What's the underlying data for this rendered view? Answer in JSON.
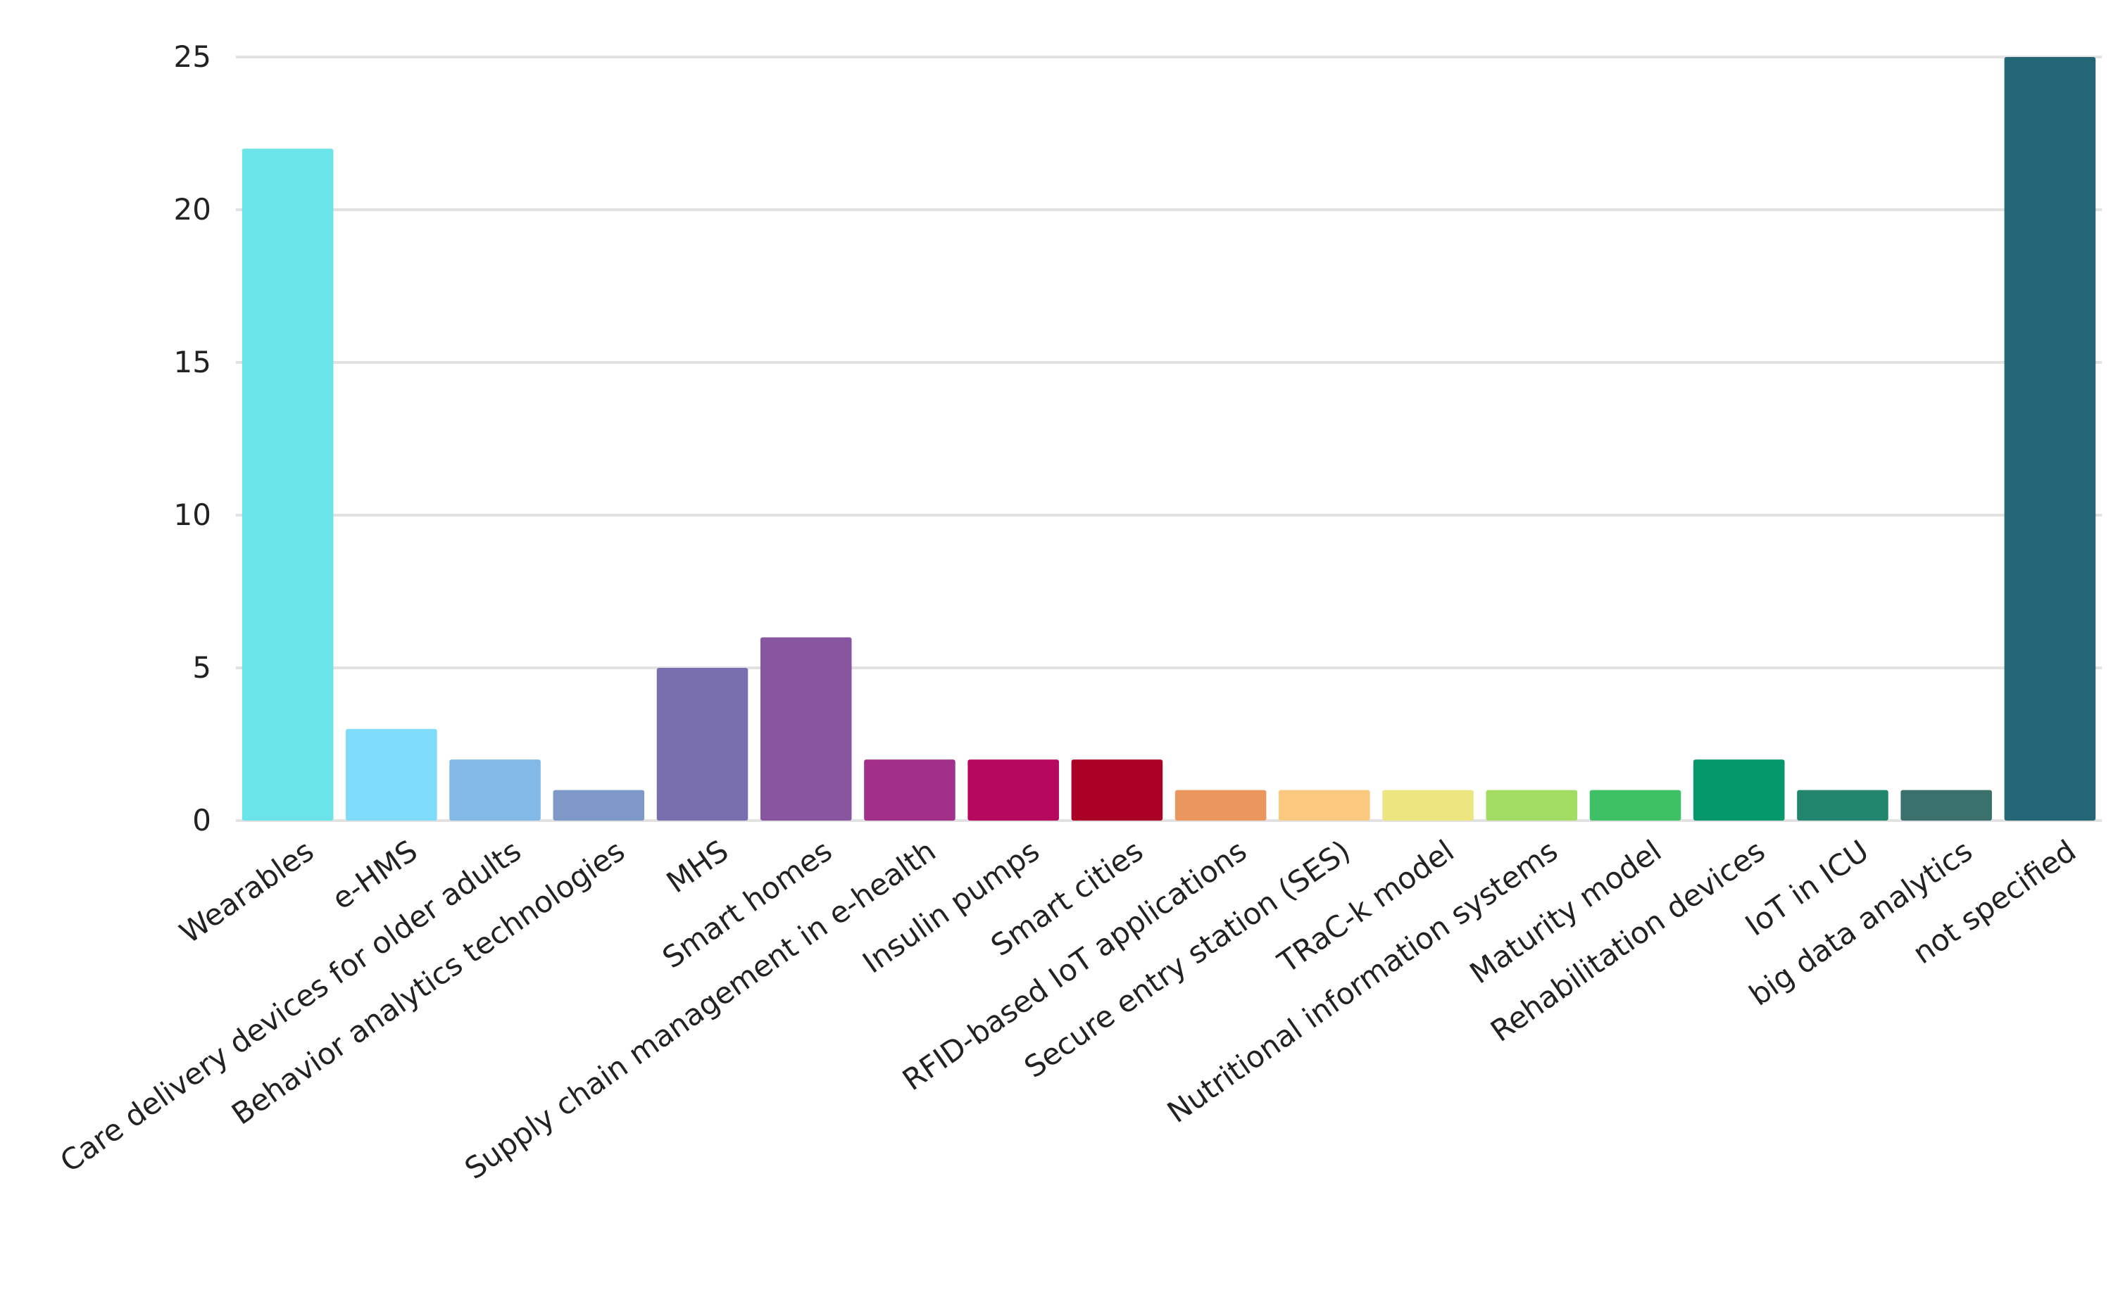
{
  "chart_data": {
    "type": "bar",
    "title": "",
    "xlabel": "",
    "ylabel": "",
    "ylim": [
      0,
      25
    ],
    "yticks": [
      0,
      5,
      10,
      15,
      20,
      25
    ],
    "grid": true,
    "legend": "none",
    "categories": [
      "Wearables",
      "e-HMS",
      "Care delivery devices for older adults",
      "Behavior analytics technologies",
      "MHS",
      "Smart homes",
      "Supply chain management in e-health",
      "Insulin pumps",
      "Smart cities",
      "RFID-based IoT applications",
      "Secure entry station (SES)",
      "TRaC-k model",
      "Nutritional information systems",
      "Maturity model",
      "Rehabilitation devices",
      "IoT in ICU",
      "big data analytics",
      "not specified"
    ],
    "values": [
      22,
      3,
      2,
      1,
      5,
      6,
      2,
      2,
      2,
      1,
      1,
      1,
      1,
      1,
      2,
      1,
      1,
      25
    ],
    "colors": [
      "#6ae4e9",
      "#7fdcfb",
      "#81b9e7",
      "#7e99c8",
      "#7a6fae",
      "#87569e",
      "#a2308a",
      "#b70860",
      "#ac0127",
      "#e9965f",
      "#fac97f",
      "#ede57f",
      "#a2dc63",
      "#3ec064",
      "#05986b",
      "#22866e",
      "#3b716d",
      "#236676"
    ]
  }
}
